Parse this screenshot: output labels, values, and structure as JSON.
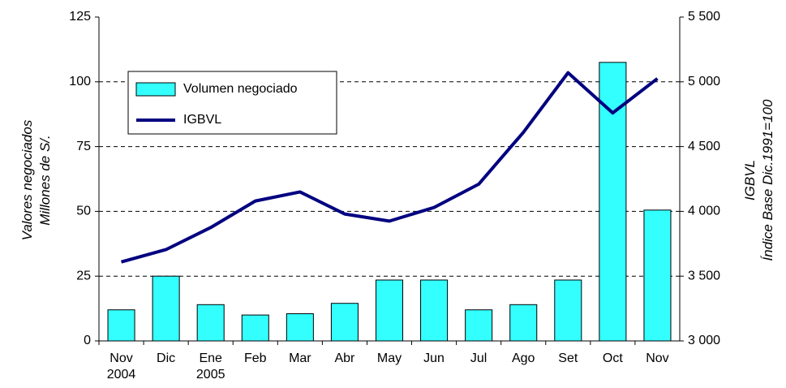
{
  "chart_data": {
    "type": "bar_line",
    "categories": [
      "Nov\n2004",
      "Dic",
      "Ene\n2005",
      "Feb",
      "Mar",
      "Abr",
      "May",
      "Jun",
      "Jul",
      "Ago",
      "Set",
      "Oct",
      "Nov"
    ],
    "series": [
      {
        "name": "Volumen negociado",
        "type": "bar",
        "color": "#33ffff",
        "axis": "y",
        "values": [
          12,
          25,
          14,
          10,
          10.5,
          14.5,
          23.5,
          23.5,
          12,
          14,
          23.5,
          107.5,
          50.5
        ]
      },
      {
        "name": "IGBVL",
        "type": "line",
        "color": "#000080",
        "axis": "y2",
        "values": [
          3610,
          3705,
          3875,
          4080,
          4150,
          3980,
          3925,
          4030,
          4210,
          4610,
          5070,
          4760,
          5025
        ]
      }
    ],
    "ylabel": "Valores negociados\nMillones de S/.",
    "y2label": "IGBVL\nÍndice Base Dic.1991=100",
    "ylim": [
      0,
      125
    ],
    "yticks": [
      0,
      25,
      50,
      75,
      100,
      125
    ],
    "y2lim": [
      3000,
      5500
    ],
    "y2ticks": [
      {
        "value": 3000,
        "label": "3 000"
      },
      {
        "value": 3500,
        "label": "3 500"
      },
      {
        "value": 4000,
        "label": "4 000"
      },
      {
        "value": 4500,
        "label": "4 500"
      },
      {
        "value": 5000,
        "label": "5 000"
      },
      {
        "value": 5500,
        "label": "5 500"
      }
    ],
    "grid": true,
    "legend": "upper left"
  }
}
